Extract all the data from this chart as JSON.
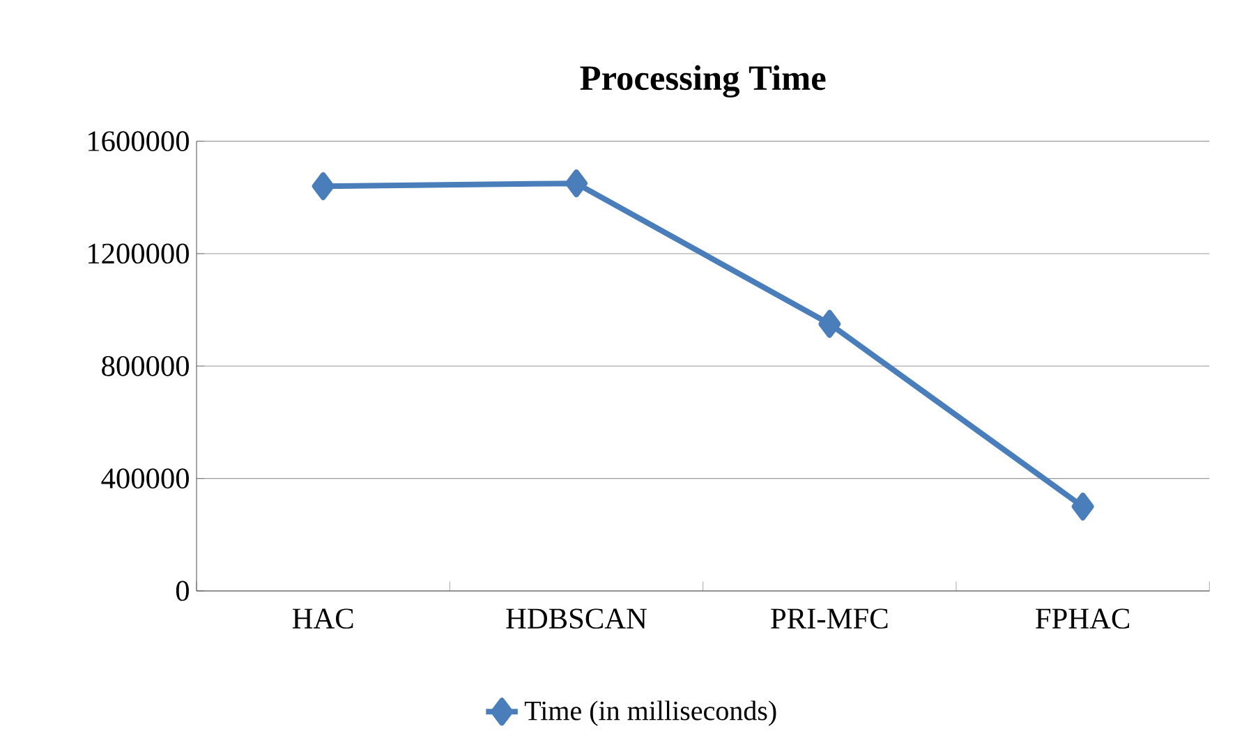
{
  "chart_data": {
    "type": "line",
    "title": "Processing Time",
    "categories": [
      "HAC",
      "HDBSCAN",
      "PRI-MFC",
      "FPHAC"
    ],
    "series": [
      {
        "name": "Time (in milliseconds)",
        "color": "#4a7ebb",
        "values": [
          1440000,
          1450000,
          950000,
          300000
        ]
      }
    ],
    "ylim": [
      0,
      1600000
    ],
    "yticks": [
      0,
      400000,
      800000,
      1200000,
      1600000
    ],
    "grid": "y",
    "legend": "bottom",
    "marker": "diamond",
    "line_style": "solid"
  }
}
